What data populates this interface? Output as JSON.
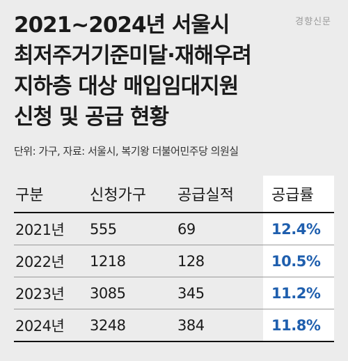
{
  "watermark": "경향신문",
  "title": {
    "line1": "2021~2024년 서울시",
    "line2": "최저주거기준미달·재해우려",
    "line3": "지하층 대상 매입임대지원",
    "line4": "신청 및 공급 현황"
  },
  "source": "단위: 가구, 자료: 서울시, 복기왕 더불어민주당 의원실",
  "table": {
    "headers": [
      "구분",
      "신청가구",
      "공급실적",
      "공급률"
    ],
    "rows": [
      [
        "2021년",
        "555",
        "69",
        "12.4%"
      ],
      [
        "2022년",
        "1218",
        "128",
        "10.5%"
      ],
      [
        "2023년",
        "3085",
        "345",
        "11.2%"
      ],
      [
        "2024년",
        "3248",
        "384",
        "11.8%"
      ]
    ]
  },
  "colors": {
    "background": "#ececec",
    "highlight_column": "#ffffff",
    "rate_text": "#1f5fae"
  }
}
